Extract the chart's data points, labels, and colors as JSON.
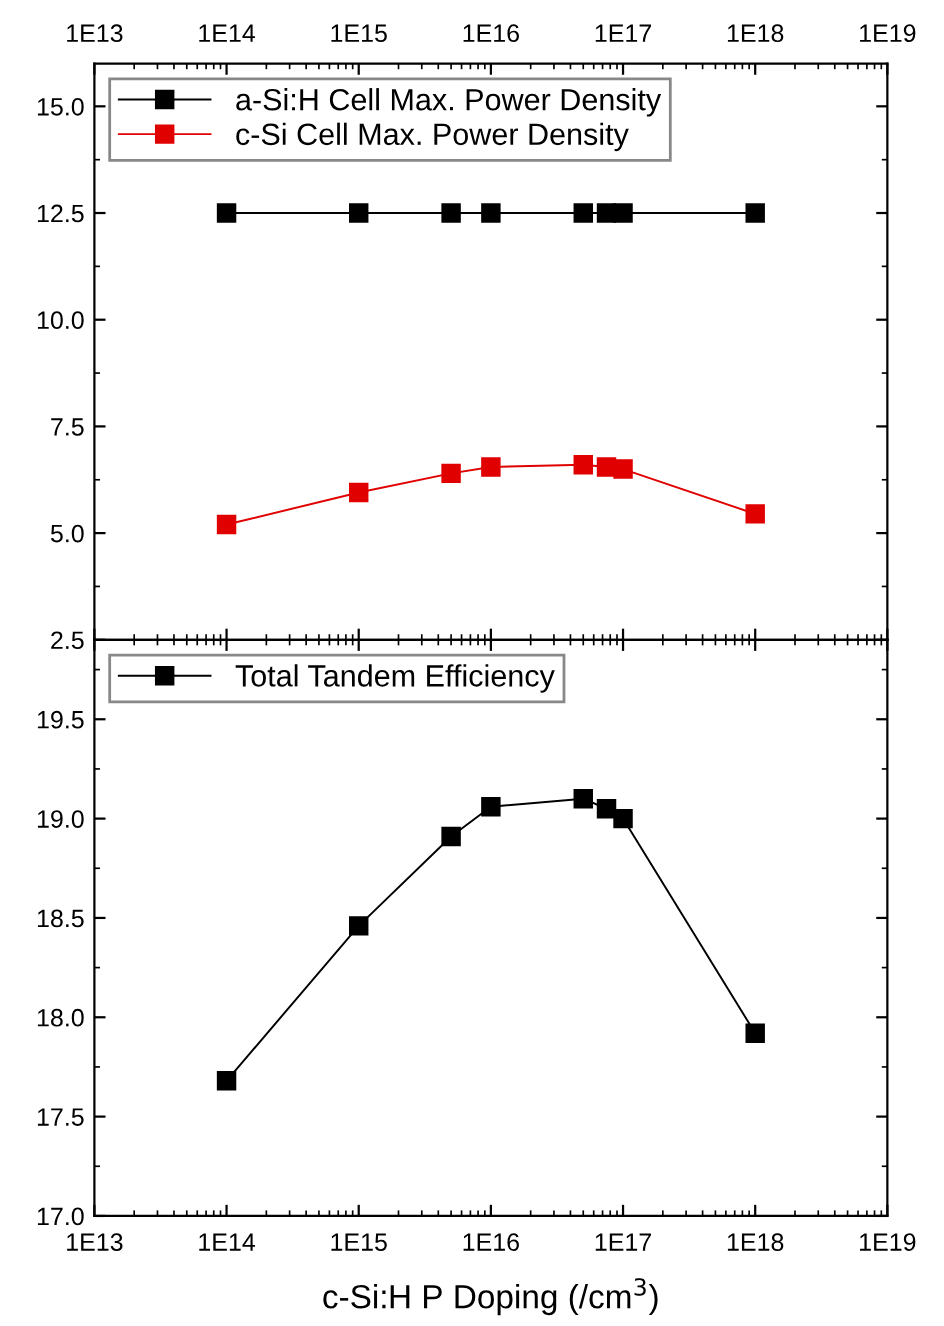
{
  "chart_data": [
    {
      "type": "line",
      "x": [
        100000000000000.0,
        1000000000000000.0,
        5000000000000000.0,
        1e+16,
        5e+16,
        7.5e+16,
        1e+17,
        1e+18
      ],
      "log": "x",
      "marker": "square",
      "grid": false,
      "legend": "top left",
      "series": [
        {
          "name": "a-Si:H Cell Max. Power Density",
          "color": "#000000",
          "values": [
            12.5,
            12.5,
            12.5,
            12.5,
            12.5,
            12.5,
            12.5,
            12.5
          ]
        },
        {
          "name": "c-Si Cell Max. Power Density",
          "color": "#e00000",
          "values": [
            5.2,
            5.95,
            6.4,
            6.55,
            6.6,
            6.55,
            6.5,
            5.45
          ]
        }
      ],
      "xlim": [
        10000000000000.0,
        1e+19
      ],
      "xticks": [
        {
          "value": 10000000000000.0,
          "label": "1E13"
        },
        {
          "value": 100000000000000.0,
          "label": "1E14"
        },
        {
          "value": 1000000000000000.0,
          "label": "1E15"
        },
        {
          "value": 1e+16,
          "label": "1E16"
        },
        {
          "value": 1e+17,
          "label": "1E17"
        },
        {
          "value": 1e+18,
          "label": "1E18"
        },
        {
          "value": 1e+19,
          "label": "1E19"
        }
      ],
      "ylim": [
        2.5,
        16.0
      ],
      "yticks": [
        {
          "value": 2.5,
          "label": "2.5"
        },
        {
          "value": 5.0,
          "label": "5.0"
        },
        {
          "value": 7.5,
          "label": "7.5"
        },
        {
          "value": 10.0,
          "label": "10.0"
        },
        {
          "value": 12.5,
          "label": "12.5"
        },
        {
          "value": 15.0,
          "label": "15.0"
        }
      ]
    },
    {
      "type": "line",
      "x": [
        100000000000000.0,
        1000000000000000.0,
        5000000000000000.0,
        1e+16,
        5e+16,
        7.5e+16,
        1e+17,
        1e+18
      ],
      "log": "x",
      "marker": "square",
      "grid": false,
      "legend": "top left",
      "xlabel": "c-Si:H P Doping (/cm$^{3}$)",
      "series": [
        {
          "name": "Total Tandem Efficiency",
          "color": "#000000",
          "values": [
            17.68,
            18.46,
            18.91,
            19.06,
            19.1,
            19.05,
            19.0,
            17.92
          ]
        }
      ],
      "xlim": [
        10000000000000.0,
        1e+19
      ],
      "xticks": [
        {
          "value": 10000000000000.0,
          "label": "1E13"
        },
        {
          "value": 100000000000000.0,
          "label": "1E14"
        },
        {
          "value": 1000000000000000.0,
          "label": "1E15"
        },
        {
          "value": 1e+16,
          "label": "1E16"
        },
        {
          "value": 1e+17,
          "label": "1E17"
        },
        {
          "value": 1e+18,
          "label": "1E18"
        },
        {
          "value": 1e+19,
          "label": "1E19"
        }
      ],
      "ylim": [
        17.0,
        19.9
      ],
      "yticks": [
        {
          "value": 17.0,
          "label": "17.0"
        },
        {
          "value": 17.5,
          "label": "17.5"
        },
        {
          "value": 18.0,
          "label": "18.0"
        },
        {
          "value": 18.5,
          "label": "18.5"
        },
        {
          "value": 19.0,
          "label": "19.0"
        },
        {
          "value": 19.5,
          "label": "19.5"
        }
      ]
    }
  ]
}
